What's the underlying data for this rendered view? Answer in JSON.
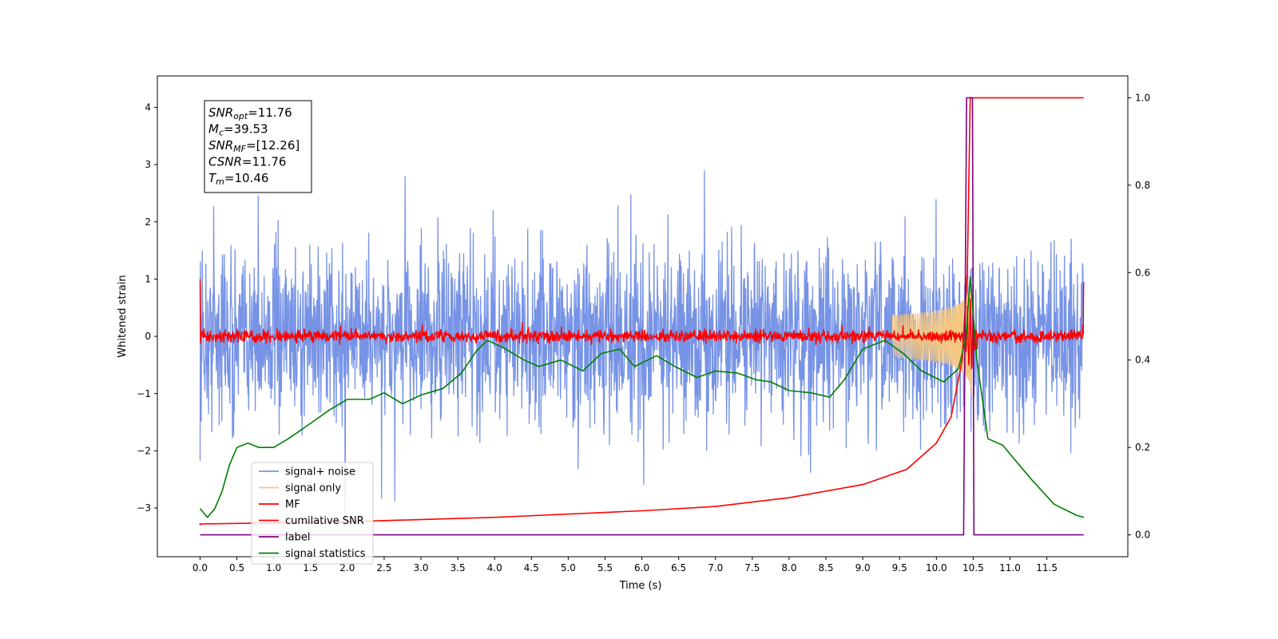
{
  "chart_data": {
    "type": "line",
    "title": "",
    "xlabel": "Time (s)",
    "ylabel": "Whitened strain",
    "xlim": [
      -0.58,
      12.6
    ],
    "ylim": [
      -3.85,
      4.55
    ],
    "y2lim": [
      -0.05,
      1.05
    ],
    "x_ticks": [
      0.0,
      0.5,
      1.0,
      1.5,
      2.0,
      2.5,
      3.0,
      3.5,
      4.0,
      4.5,
      5.0,
      5.5,
      6.0,
      6.5,
      7.0,
      7.5,
      8.0,
      8.5,
      9.0,
      9.5,
      10.0,
      10.5,
      11.0,
      11.5
    ],
    "x_tick_labels": [
      "0.0",
      "0.5",
      "1.0",
      "1.5",
      "2.0",
      "2.5",
      "3.0",
      "3.5",
      "4.0",
      "4.5",
      "5.0",
      "5.5",
      "6.0",
      "6.5",
      "7.0",
      "7.5",
      "8.0",
      "8.5",
      "9.0",
      "9.5",
      "10.0",
      "10.5",
      "11.0",
      "11.5"
    ],
    "y_ticks": [
      -3,
      -2,
      -1,
      0,
      1,
      2,
      3,
      4
    ],
    "y_tick_labels": [
      "−3",
      "−2",
      "−1",
      "0",
      "1",
      "2",
      "3",
      "4"
    ],
    "y2_ticks": [
      0.0,
      0.2,
      0.4,
      0.6,
      0.8,
      1.0
    ],
    "y2_tick_labels": [
      "0.0",
      "0.2",
      "0.4",
      "0.6",
      "0.8",
      "1.0"
    ],
    "grid": false,
    "legend_position": "lower-left",
    "duration": 12.0,
    "merger_time": 10.46,
    "series": [
      {
        "name": "signal+ noise",
        "color": "#7793e6",
        "axis": "left",
        "style": "noise band",
        "amplitude_range": [
          -3.3,
          2.9
        ]
      },
      {
        "name": "signal only",
        "color": "#f5c882",
        "axis": "left",
        "style": "chirp",
        "peak_amplitude": 1.0
      },
      {
        "name": "MF",
        "color": "#ff0000",
        "axis": "left",
        "style": "noise around zero",
        "amplitude": 0.25
      },
      {
        "name": "cumilative SNR",
        "color": "#ff0000",
        "axis": "right",
        "points": [
          [
            0.0,
            0.025
          ],
          [
            2.0,
            0.03
          ],
          [
            4.0,
            0.04
          ],
          [
            6.0,
            0.055
          ],
          [
            7.0,
            0.065
          ],
          [
            8.0,
            0.085
          ],
          [
            9.0,
            0.115
          ],
          [
            9.6,
            0.15
          ],
          [
            10.0,
            0.21
          ],
          [
            10.2,
            0.27
          ],
          [
            10.35,
            0.4
          ],
          [
            10.42,
            0.6
          ],
          [
            10.46,
            1.0
          ],
          [
            12.0,
            1.0
          ]
        ]
      },
      {
        "name": "label",
        "color": "#800080",
        "axis": "right",
        "points": [
          [
            0.0,
            0.0
          ],
          [
            10.37,
            0.0
          ],
          [
            10.41,
            1.0
          ],
          [
            10.49,
            1.0
          ],
          [
            10.51,
            0.0
          ],
          [
            12.0,
            0.0
          ]
        ]
      },
      {
        "name": "signal statistics",
        "color": "#008000",
        "axis": "right",
        "points": [
          [
            0.0,
            0.06
          ],
          [
            0.1,
            0.04
          ],
          [
            0.2,
            0.06
          ],
          [
            0.3,
            0.1
          ],
          [
            0.4,
            0.16
          ],
          [
            0.5,
            0.2
          ],
          [
            0.65,
            0.21
          ],
          [
            0.8,
            0.2
          ],
          [
            1.0,
            0.2
          ],
          [
            1.2,
            0.22
          ],
          [
            1.5,
            0.255
          ],
          [
            1.75,
            0.285
          ],
          [
            2.0,
            0.31
          ],
          [
            2.3,
            0.31
          ],
          [
            2.5,
            0.325
          ],
          [
            2.75,
            0.3
          ],
          [
            3.0,
            0.32
          ],
          [
            3.3,
            0.335
          ],
          [
            3.55,
            0.37
          ],
          [
            3.75,
            0.42
          ],
          [
            3.9,
            0.445
          ],
          [
            4.1,
            0.43
          ],
          [
            4.4,
            0.4
          ],
          [
            4.6,
            0.385
          ],
          [
            4.9,
            0.4
          ],
          [
            5.2,
            0.375
          ],
          [
            5.45,
            0.415
          ],
          [
            5.7,
            0.425
          ],
          [
            5.9,
            0.385
          ],
          [
            6.2,
            0.41
          ],
          [
            6.45,
            0.385
          ],
          [
            6.75,
            0.36
          ],
          [
            7.0,
            0.375
          ],
          [
            7.3,
            0.37
          ],
          [
            7.55,
            0.355
          ],
          [
            7.75,
            0.35
          ],
          [
            8.0,
            0.33
          ],
          [
            8.3,
            0.325
          ],
          [
            8.55,
            0.315
          ],
          [
            8.75,
            0.355
          ],
          [
            9.0,
            0.425
          ],
          [
            9.3,
            0.445
          ],
          [
            9.55,
            0.415
          ],
          [
            9.8,
            0.375
          ],
          [
            10.1,
            0.35
          ],
          [
            10.3,
            0.38
          ],
          [
            10.4,
            0.45
          ],
          [
            10.46,
            0.59
          ],
          [
            10.55,
            0.4
          ],
          [
            10.7,
            0.22
          ],
          [
            10.9,
            0.205
          ],
          [
            11.1,
            0.165
          ],
          [
            11.3,
            0.125
          ],
          [
            11.6,
            0.07
          ],
          [
            11.9,
            0.045
          ],
          [
            12.0,
            0.04
          ]
        ]
      }
    ],
    "annotation_lines": [
      {
        "name": "SNR",
        "sub": "opt",
        "value": "=11.76"
      },
      {
        "name": "M",
        "sub": "c",
        "value": "=39.53"
      },
      {
        "name": "SNR",
        "sub": "MF",
        "value": "=[12.26]"
      },
      {
        "name": "CSNR",
        "sub": "",
        "value": "=11.76"
      },
      {
        "name": "T",
        "sub": "m",
        "value": "=10.46"
      }
    ]
  }
}
